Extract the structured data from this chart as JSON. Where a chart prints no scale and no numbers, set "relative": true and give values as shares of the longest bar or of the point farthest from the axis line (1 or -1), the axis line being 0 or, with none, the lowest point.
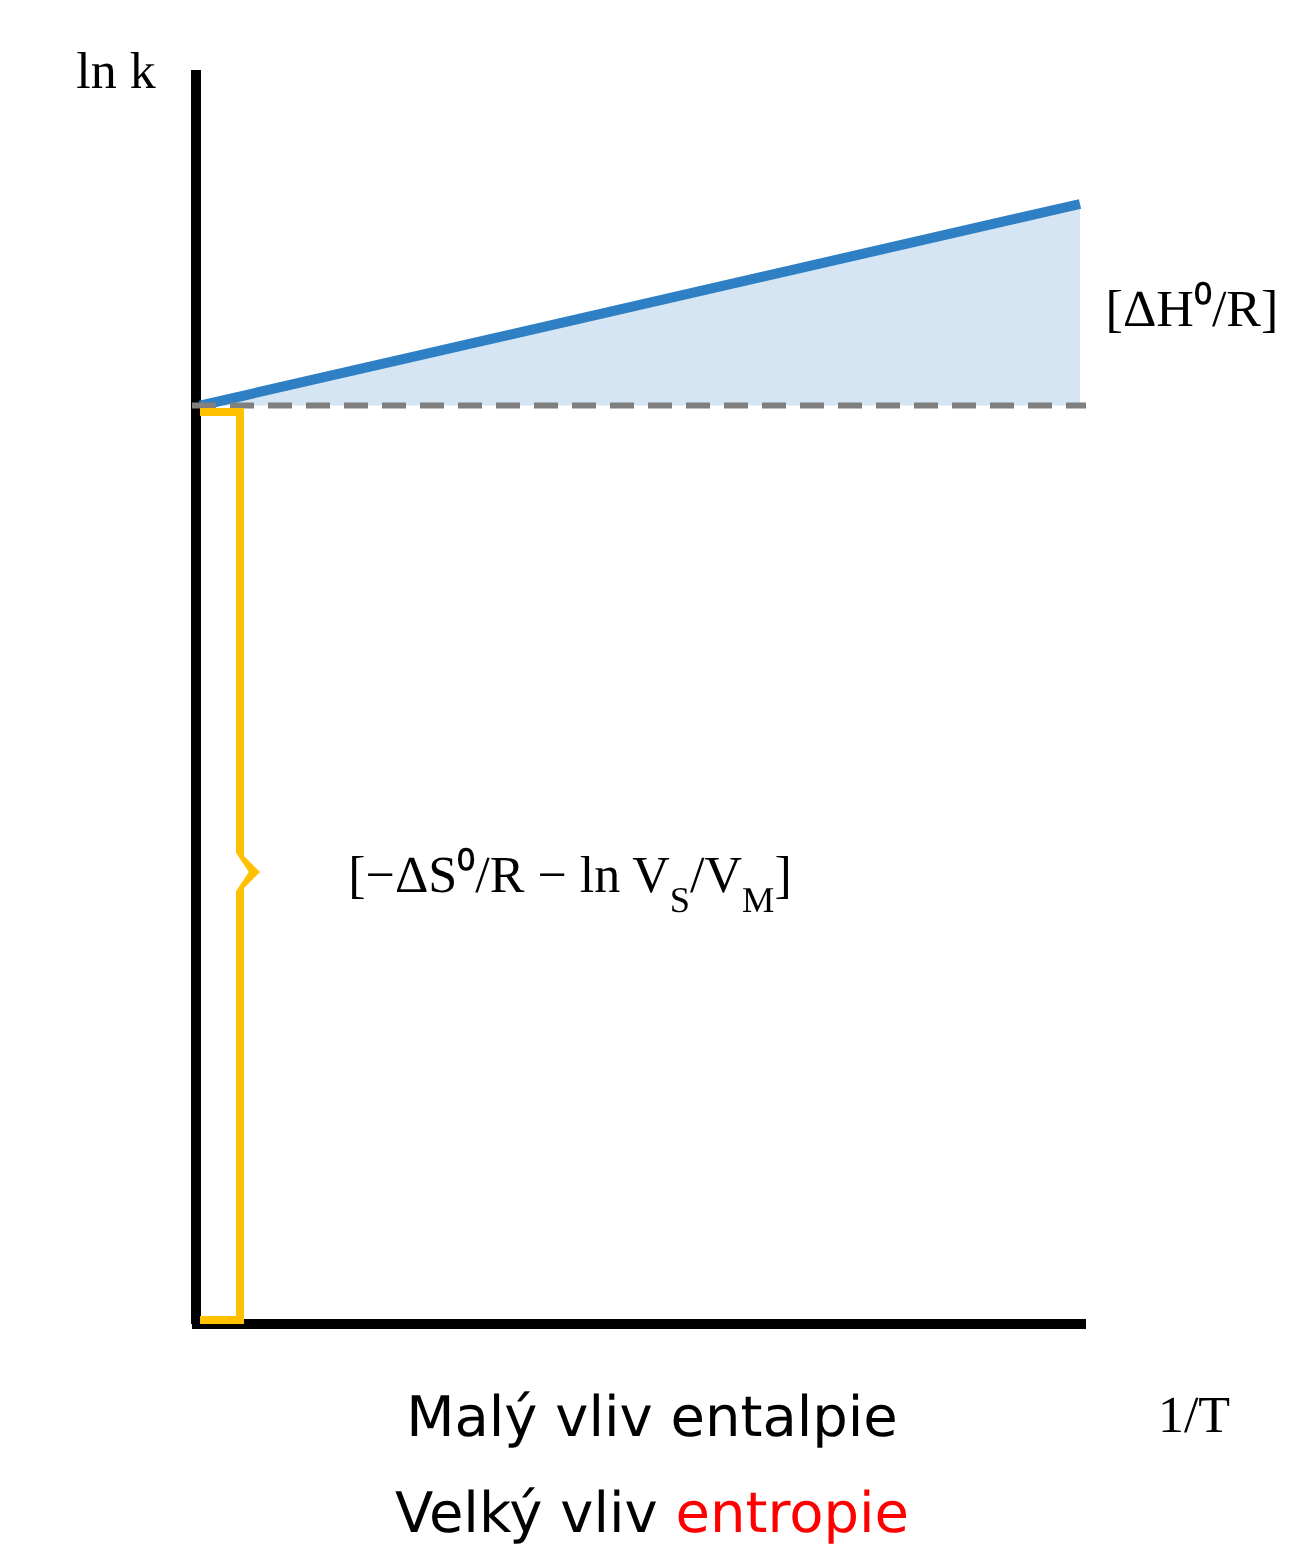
{
  "chart_data": {
    "type": "line",
    "relative": true,
    "ylabel": "ln k",
    "xlabel": "1/T",
    "categories": [
      null,
      null
    ],
    "series": [
      {
        "color": "#2e7fc4",
        "values": [
          0.82,
          1
        ],
        "lower": [
          0.82,
          0.82
        ],
        "upper": [
          0.82,
          1
        ]
      }
    ],
    "ref_lines": [
      {
        "axis": "y",
        "value": 0.82,
        "color": "#808080",
        "line_style": "dashed"
      },
      {
        "axis": "y",
        "value": 0,
        "color": "#000000",
        "line_style": "solid"
      }
    ],
    "annotations": [
      "[ΔH⁰/R]",
      "[−ΔS⁰/R − ln V$_{S}$/V$_{M}$]",
      "Malý vliv entalpie",
      "Velký vliv entropie"
    ],
    "line_style": "solid"
  }
}
